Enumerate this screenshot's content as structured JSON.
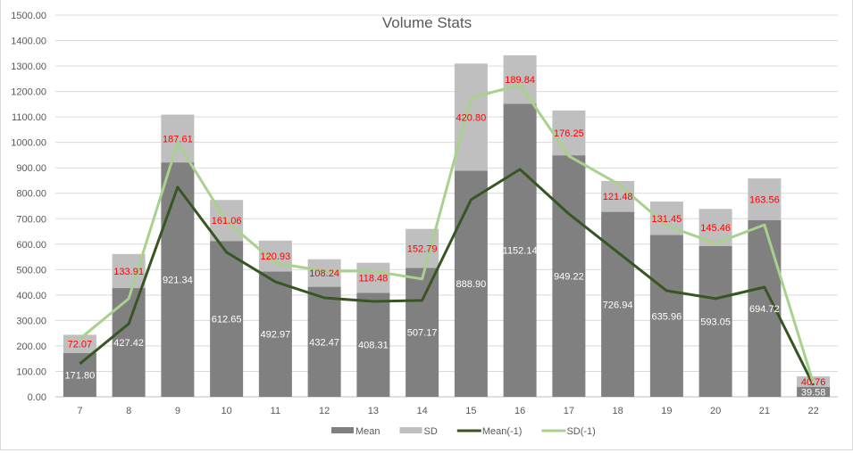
{
  "chart_data": {
    "type": "bar",
    "title": "Volume Stats",
    "xlabel": "",
    "ylabel": "",
    "ylim": [
      0,
      1500
    ],
    "ytick_step": 100,
    "ytick_labels": [
      "0.00",
      "100.00",
      "200.00",
      "300.00",
      "400.00",
      "500.00",
      "600.00",
      "700.00",
      "800.00",
      "900.00",
      "1000.00",
      "1100.00",
      "1200.00",
      "1300.00",
      "1400.00",
      "1500.00"
    ],
    "grid": true,
    "legend_position": "bottom",
    "categories": [
      "7",
      "8",
      "9",
      "10",
      "11",
      "12",
      "13",
      "14",
      "15",
      "16",
      "17",
      "18",
      "19",
      "20",
      "21",
      "22"
    ],
    "series": [
      {
        "name": "Mean",
        "kind": "stacked-bar",
        "color": "#808080",
        "label_color": "#ffffff",
        "values": [
          171.8,
          427.42,
          921.34,
          612.65,
          492.97,
          432.47,
          408.31,
          507.17,
          888.9,
          1152.14,
          949.22,
          726.94,
          635.96,
          593.05,
          694.72,
          39.58
        ],
        "labels": [
          "171.80",
          "427.42",
          "921.34",
          "612.65",
          "492.97",
          "432.47",
          "408.31",
          "507.17",
          "888.90",
          "1152.14",
          "949.22",
          "726.94",
          "635.96",
          "593.05",
          "694.72",
          "39.58"
        ]
      },
      {
        "name": "SD",
        "kind": "stacked-bar",
        "color": "#bfbfbf",
        "label_color": "#ff0000",
        "values": [
          72.07,
          133.91,
          187.61,
          161.06,
          120.93,
          108.24,
          118.48,
          152.79,
          420.8,
          189.84,
          176.25,
          121.48,
          131.45,
          145.46,
          163.56,
          40.76
        ],
        "labels": [
          "72.07",
          "133.91",
          "187.61",
          "161.06",
          "120.93",
          "108.24",
          "118.48",
          "152.79",
          "420.80",
          "189.84",
          "176.25",
          "121.48",
          "131.45",
          "145.46",
          "163.56",
          "40.76"
        ]
      },
      {
        "name": "Mean(-1)",
        "kind": "line",
        "color": "#375623",
        "values": [
          130,
          287,
          824,
          568,
          452,
          389,
          375,
          379,
          775,
          894,
          719,
          568,
          417,
          386,
          431,
          46
        ]
      },
      {
        "name": "SD(-1)",
        "kind": "line",
        "color": "#a9d18e",
        "values": [
          228,
          386,
          999,
          690,
          526,
          494,
          494,
          463,
          1174,
          1227,
          946,
          838,
          673,
          603,
          676,
          53
        ]
      }
    ]
  }
}
